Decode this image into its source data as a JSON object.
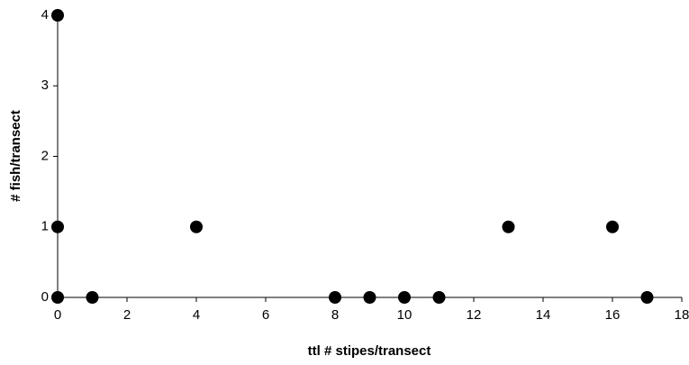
{
  "chart_data": {
    "type": "scatter",
    "x_label": "ttl # stipes/transect",
    "y_label": "# fish/transect",
    "series": [
      {
        "color": "#000000",
        "x": [
          0,
          0,
          0,
          1,
          4,
          8,
          9,
          10,
          11,
          13,
          16,
          17
        ],
        "values": [
          4,
          1,
          0,
          0,
          1,
          0,
          0,
          0,
          0,
          1,
          1,
          0
        ]
      }
    ],
    "xlim": [
      0,
      18
    ],
    "xticks": [
      0,
      2,
      4,
      6,
      8,
      10,
      12,
      14,
      16,
      18
    ],
    "ylim": [
      0,
      4
    ],
    "yticks": [
      0,
      1,
      2,
      3,
      4
    ],
    "grid": false
  }
}
